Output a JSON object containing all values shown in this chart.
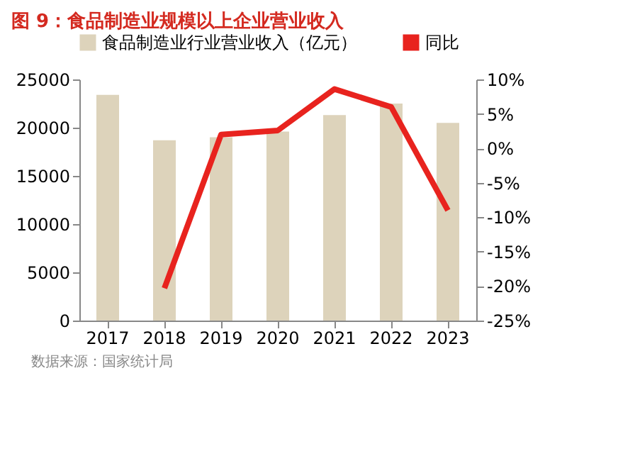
{
  "chart_data": {
    "type": "bar",
    "title": "图 9：食品制造业规模以上企业营业收入",
    "categories": [
      "2017",
      "2018",
      "2019",
      "2020",
      "2021",
      "2022",
      "2023"
    ],
    "series": [
      {
        "name": "食品制造业行业营业收入（亿元）",
        "color": "#ddd3bb",
        "values": [
          23400,
          18700,
          19000,
          19600,
          21300,
          22500,
          20500
        ]
      },
      {
        "name": "同比",
        "type": "line",
        "axis": "y2",
        "color": "#e8231e",
        "values": [
          null,
          -20.3,
          2.0,
          2.6,
          8.6,
          6.0,
          -9.0
        ]
      }
    ],
    "ylim": [
      0,
      25000
    ],
    "yticks": [
      0,
      5000,
      10000,
      15000,
      20000,
      25000
    ],
    "y2lim": [
      -25,
      10
    ],
    "y2ticks": [
      {
        "value": -25,
        "label": "-25%"
      },
      {
        "value": -20,
        "label": "-20%"
      },
      {
        "value": -15,
        "label": "-15%"
      },
      {
        "value": -10,
        "label": "-10%"
      },
      {
        "value": -5,
        "label": "-5%"
      },
      {
        "value": 0,
        "label": "0%"
      },
      {
        "value": 5,
        "label": "5%"
      },
      {
        "value": 10,
        "label": "10%"
      }
    ],
    "grid": false,
    "legend": "top",
    "marker": "none",
    "annotations": [
      "数据来源：国家统计局"
    ]
  }
}
